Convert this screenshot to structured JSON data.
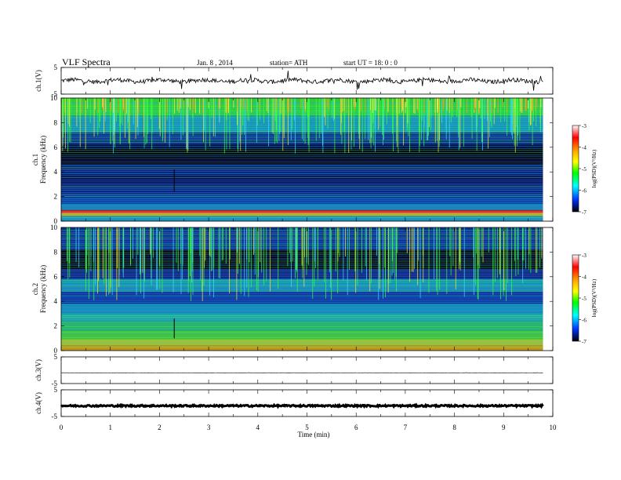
{
  "header": {
    "title": "VLF Spectra",
    "date": "Jan. 8 , 2014",
    "station": "station= ATH",
    "start": "start UT = 18: 0 : 0"
  },
  "colorscale": {
    "label": "log(PSD)(V²/Hz)",
    "ticks": [
      "-3",
      "-4",
      "-5",
      "-6",
      "-7"
    ],
    "stops": [
      "#ffffff",
      "#ff0000",
      "#ffaa00",
      "#ffff00",
      "#00ff00",
      "#00ffff",
      "#0033ff",
      "#000000"
    ]
  },
  "chart_data": [
    {
      "type": "line",
      "ylabel": "ch.1(V)",
      "ylim": [
        -5,
        5
      ],
      "yticks": [
        "5",
        "-5"
      ],
      "xlim": [
        0,
        10
      ]
    },
    {
      "type": "heatmap",
      "ylabel": "ch.1",
      "ylabel2": "Frequency (kHz)",
      "ylim": [
        0,
        10
      ],
      "yticks": [
        "10",
        "8",
        "6",
        "4",
        "2",
        "0"
      ],
      "xlim": [
        0,
        10
      ],
      "data_end_min": 9.8
    },
    {
      "type": "heatmap",
      "ylabel": "ch.2",
      "ylabel2": "Frequency (kHz)",
      "ylim": [
        0,
        10
      ],
      "yticks": [
        "10",
        "8",
        "6",
        "4",
        "2",
        "0"
      ],
      "xlim": [
        0,
        10
      ],
      "data_end_min": 9.8
    },
    {
      "type": "line",
      "ylabel": "ch.3(V)",
      "ylim": [
        -5,
        5
      ],
      "yticks": [
        "5",
        "-5"
      ],
      "xlim": [
        0,
        10
      ]
    },
    {
      "type": "line",
      "ylabel": "ch.4(V)",
      "ylim": [
        -5,
        5
      ],
      "yticks": [
        "5",
        "-5"
      ],
      "xlim": [
        0,
        10
      ]
    }
  ],
  "xaxis": {
    "label": "Time (min)",
    "ticks": [
      "0",
      "1",
      "2",
      "3",
      "4",
      "5",
      "6",
      "7",
      "8",
      "9",
      "10"
    ]
  }
}
